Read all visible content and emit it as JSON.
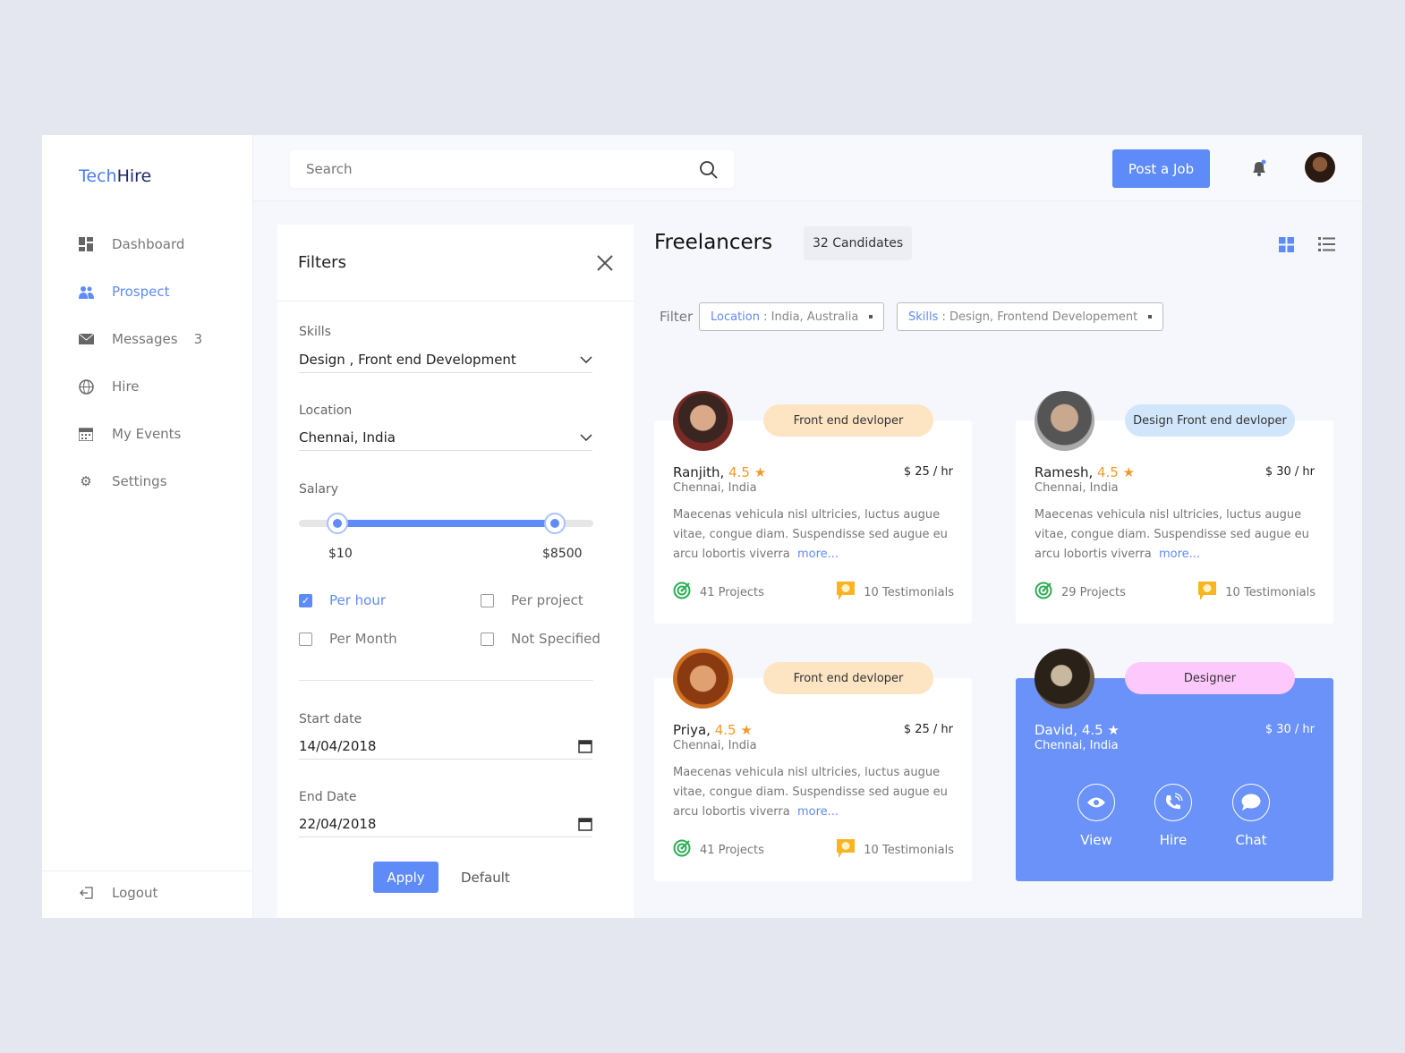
{
  "app": {
    "logo_part1": "Tech",
    "logo_part2": "Hire"
  },
  "sidebar": {
    "items": [
      {
        "label": "Dashboard",
        "icon": "dashboard-icon"
      },
      {
        "label": "Prospect",
        "icon": "people-icon",
        "active": true
      },
      {
        "label": "Messages",
        "icon": "mail-icon",
        "badge": "3"
      },
      {
        "label": "Hire",
        "icon": "globe-icon"
      },
      {
        "label": "My Events",
        "icon": "calendar-icon"
      },
      {
        "label": "Settings",
        "icon": "gear-icon"
      }
    ],
    "logout": "Logout"
  },
  "topbar": {
    "search_placeholder": "Search",
    "post_job": "Post a Job"
  },
  "filters": {
    "title": "Filters",
    "skills_label": "Skills",
    "skills_value": "Design , Front end Development",
    "location_label": "Location",
    "location_value": "Chennai, India",
    "salary_label": "Salary",
    "salary_min": "$10",
    "salary_max": "$8500",
    "salary_range_fraction": [
      0.13,
      0.87
    ],
    "options": [
      {
        "label": "Per hour",
        "checked": true
      },
      {
        "label": "Per project",
        "checked": false
      },
      {
        "label": "Per Month",
        "checked": false
      },
      {
        "label": "Not Specified",
        "checked": false
      }
    ],
    "start_label": "Start date",
    "start_value": "14/04/2018",
    "end_label": "End Date",
    "end_value": "22/04/2018",
    "apply": "Apply",
    "default": "Default"
  },
  "main": {
    "title": "Freelancers",
    "count": "32 Candidates",
    "filter_label": "Filter",
    "chips": [
      {
        "key": "Location",
        "value": "India, Australia"
      },
      {
        "key": "Skills",
        "value": "Design, Frontend Developement"
      }
    ]
  },
  "cards": [
    {
      "tag": "Front end devloper",
      "tag_color": "#fde5c4",
      "name": "Ranjith,",
      "rating": "4.5",
      "location": "Chennai, India",
      "rate": "$ 25 / hr",
      "desc": "Maecenas vehicula nisl ultricies, luctus augue vitae, congue diam. Suspendisse sed augue eu arcu lobortis viverra",
      "more": "more...",
      "projects": "41 Projects",
      "testimonials": "10 Testimonials"
    },
    {
      "tag": "Design Front end devloper",
      "tag_color": "#d2e6fb",
      "name": "Ramesh,",
      "rating": "4.5",
      "location": "Chennai, India",
      "rate": "$ 30 / hr",
      "desc": "Maecenas vehicula nisl ultricies, luctus augue vitae, congue diam. Suspendisse sed augue eu arcu lobortis viverra",
      "more": "more...",
      "projects": "29 Projects",
      "testimonials": "10 Testimonials"
    },
    {
      "tag": "Front end devloper",
      "tag_color": "#fde5c4",
      "name": "Priya,",
      "rating": "4.5",
      "location": "Chennai, India",
      "rate": "$ 25 / hr",
      "desc": "Maecenas vehicula nisl ultricies, luctus augue vitae, congue diam. Suspendisse sed augue eu arcu lobortis viverra",
      "more": "more...",
      "projects": "41 Projects",
      "testimonials": "10 Testimonials"
    },
    {
      "tag": "Designer",
      "tag_color": "#fdc8fb",
      "name": "David,",
      "rating": "4.5",
      "location": "Chennai, India",
      "rate": "$ 30 / hr",
      "actions": [
        "View",
        "Hire",
        "Chat"
      ]
    }
  ],
  "colors": {
    "accent": "#5f8bf8",
    "rating": "#f39a2b",
    "highlight_card": "#6a92f8"
  }
}
